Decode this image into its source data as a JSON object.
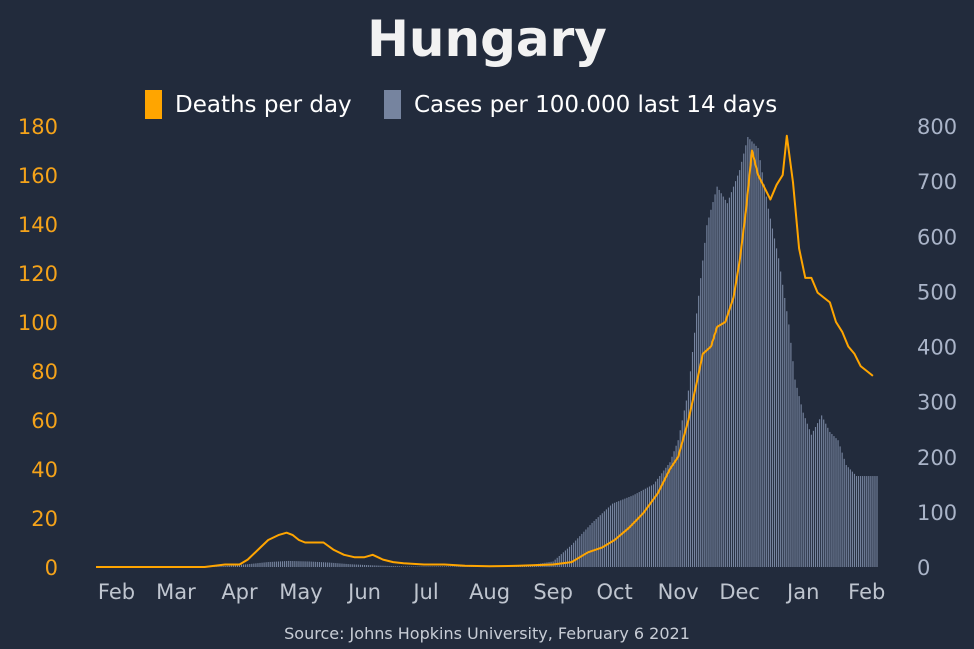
{
  "colors": {
    "background": "#222b3c",
    "deaths": "#ffa500",
    "cases": "#76849f",
    "left_axis": "#f5a31a",
    "right_axis": "#aab4c8",
    "x_axis": "#bfc5cf"
  },
  "chart_data": {
    "type": "line+bar",
    "title": "Hungary",
    "source": "Source: Johns Hopkins University, February 6 2021",
    "legend": {
      "placement": "top-center",
      "entries": [
        {
          "key": "deaths",
          "label": "Deaths per day",
          "color": "#ffa500"
        },
        {
          "key": "cases",
          "label": "Cases per 100.000 last 14 days",
          "color": "#76849f"
        }
      ]
    },
    "x_axis": {
      "start": "2020-01-22",
      "end": "2021-02-06",
      "ticks": [
        {
          "date": "2020-02-01",
          "label": "Feb"
        },
        {
          "date": "2020-03-01",
          "label": "Mar"
        },
        {
          "date": "2020-04-01",
          "label": "Apr"
        },
        {
          "date": "2020-05-01",
          "label": "May"
        },
        {
          "date": "2020-06-01",
          "label": "Jun"
        },
        {
          "date": "2020-07-01",
          "label": "Jul"
        },
        {
          "date": "2020-08-01",
          "label": "Aug"
        },
        {
          "date": "2020-09-01",
          "label": "Sep"
        },
        {
          "date": "2020-10-01",
          "label": "Oct"
        },
        {
          "date": "2020-11-01",
          "label": "Nov"
        },
        {
          "date": "2020-12-01",
          "label": "Dec"
        },
        {
          "date": "2021-01-01",
          "label": "Jan"
        },
        {
          "date": "2021-02-01",
          "label": "Feb"
        }
      ]
    },
    "y_left": {
      "label": "",
      "min": 0,
      "max": 180,
      "ticks": [
        0,
        20,
        40,
        60,
        80,
        100,
        120,
        140,
        160,
        180
      ]
    },
    "y_right": {
      "label": "",
      "min": 0,
      "max": 800,
      "ticks": [
        0,
        100,
        200,
        300,
        400,
        500,
        600,
        700,
        800
      ]
    },
    "grid": false,
    "series": [
      {
        "name": "Deaths per day",
        "type": "line",
        "axis": "left",
        "points": [
          [
            "2020-01-22",
            0
          ],
          [
            "2020-03-15",
            0
          ],
          [
            "2020-03-25",
            1
          ],
          [
            "2020-04-01",
            1
          ],
          [
            "2020-04-05",
            3
          ],
          [
            "2020-04-10",
            7
          ],
          [
            "2020-04-15",
            11
          ],
          [
            "2020-04-20",
            13
          ],
          [
            "2020-04-24",
            14
          ],
          [
            "2020-04-27",
            13
          ],
          [
            "2020-04-30",
            11
          ],
          [
            "2020-05-03",
            10
          ],
          [
            "2020-05-08",
            10
          ],
          [
            "2020-05-12",
            10
          ],
          [
            "2020-05-17",
            7
          ],
          [
            "2020-05-22",
            5
          ],
          [
            "2020-05-27",
            4
          ],
          [
            "2020-06-01",
            4
          ],
          [
            "2020-06-05",
            5
          ],
          [
            "2020-06-10",
            3
          ],
          [
            "2020-06-15",
            2
          ],
          [
            "2020-06-20",
            1.5
          ],
          [
            "2020-06-30",
            1
          ],
          [
            "2020-07-10",
            1
          ],
          [
            "2020-07-20",
            0.5
          ],
          [
            "2020-08-01",
            0.3
          ],
          [
            "2020-08-15",
            0.5
          ],
          [
            "2020-09-01",
            1
          ],
          [
            "2020-09-10",
            2
          ],
          [
            "2020-09-18",
            6
          ],
          [
            "2020-09-25",
            8
          ],
          [
            "2020-10-01",
            11
          ],
          [
            "2020-10-08",
            16
          ],
          [
            "2020-10-15",
            22
          ],
          [
            "2020-10-22",
            30
          ],
          [
            "2020-10-28",
            40
          ],
          [
            "2020-11-01",
            45
          ],
          [
            "2020-11-06",
            60
          ],
          [
            "2020-11-10",
            75
          ],
          [
            "2020-11-13",
            87
          ],
          [
            "2020-11-17",
            90
          ],
          [
            "2020-11-20",
            98
          ],
          [
            "2020-11-24",
            100
          ],
          [
            "2020-11-28",
            110
          ],
          [
            "2020-12-01",
            125
          ],
          [
            "2020-12-04",
            145
          ],
          [
            "2020-12-07",
            170
          ],
          [
            "2020-12-10",
            160
          ],
          [
            "2020-12-13",
            155
          ],
          [
            "2020-12-16",
            150
          ],
          [
            "2020-12-19",
            156
          ],
          [
            "2020-12-22",
            160
          ],
          [
            "2020-12-24",
            176
          ],
          [
            "2020-12-27",
            157
          ],
          [
            "2020-12-30",
            130
          ],
          [
            "2021-01-02",
            118
          ],
          [
            "2021-01-05",
            118
          ],
          [
            "2021-01-08",
            112
          ],
          [
            "2021-01-11",
            110
          ],
          [
            "2021-01-14",
            108
          ],
          [
            "2021-01-17",
            100
          ],
          [
            "2021-01-20",
            96
          ],
          [
            "2021-01-23",
            90
          ],
          [
            "2021-01-26",
            87
          ],
          [
            "2021-01-29",
            82
          ],
          [
            "2021-02-01",
            80
          ],
          [
            "2021-02-04",
            78
          ]
        ]
      },
      {
        "name": "Cases per 100.000 last 14 days",
        "type": "bar",
        "axis": "right",
        "points": [
          [
            "2020-01-22",
            0
          ],
          [
            "2020-03-10",
            0
          ],
          [
            "2020-03-25",
            2
          ],
          [
            "2020-04-05",
            5
          ],
          [
            "2020-04-15",
            9
          ],
          [
            "2020-04-25",
            11
          ],
          [
            "2020-05-05",
            10
          ],
          [
            "2020-05-15",
            8
          ],
          [
            "2020-05-25",
            5
          ],
          [
            "2020-06-05",
            3
          ],
          [
            "2020-06-20",
            1
          ],
          [
            "2020-07-10",
            1
          ],
          [
            "2020-08-01",
            1
          ],
          [
            "2020-08-20",
            3
          ],
          [
            "2020-09-01",
            10
          ],
          [
            "2020-09-10",
            40
          ],
          [
            "2020-09-20",
            80
          ],
          [
            "2020-09-30",
            115
          ],
          [
            "2020-10-10",
            130
          ],
          [
            "2020-10-20",
            150
          ],
          [
            "2020-10-28",
            190
          ],
          [
            "2020-11-01",
            230
          ],
          [
            "2020-11-06",
            320
          ],
          [
            "2020-11-10",
            460
          ],
          [
            "2020-11-15",
            620
          ],
          [
            "2020-11-20",
            690
          ],
          [
            "2020-11-25",
            660
          ],
          [
            "2020-12-01",
            720
          ],
          [
            "2020-12-05",
            780
          ],
          [
            "2020-12-10",
            760
          ],
          [
            "2020-12-15",
            650
          ],
          [
            "2020-12-20",
            560
          ],
          [
            "2020-12-25",
            440
          ],
          [
            "2020-12-28",
            340
          ],
          [
            "2021-01-01",
            280
          ],
          [
            "2021-01-05",
            240
          ],
          [
            "2021-01-10",
            275
          ],
          [
            "2021-01-14",
            245
          ],
          [
            "2021-01-18",
            230
          ],
          [
            "2021-01-22",
            185
          ],
          [
            "2021-01-27",
            165
          ],
          [
            "2021-02-04",
            165
          ]
        ]
      }
    ]
  }
}
